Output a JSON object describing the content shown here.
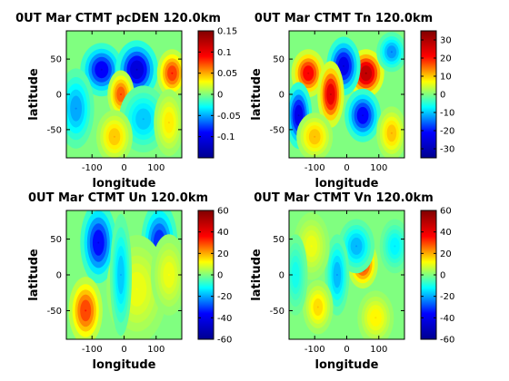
{
  "colormap": [
    "#00008f",
    "#0000ff",
    "#00ffff",
    "#ffff00",
    "#ff0000",
    "#800000"
  ],
  "chart_data": [
    {
      "type": "heatmap",
      "title": "0UT Mar CTMT pcDEN 120.0km",
      "xlabel": "longitude",
      "ylabel": "latitude",
      "xlim": [
        -180,
        180
      ],
      "ylim": [
        -90,
        90
      ],
      "xticks": [
        -100,
        0,
        100
      ],
      "yticks": [
        50,
        0,
        -50
      ],
      "clim": [
        -0.15,
        0.15
      ],
      "cticks": [
        "0.15",
        "0.1",
        "0.05",
        "0",
        "-0.05",
        "-0.1"
      ],
      "cticks_values": [
        0.15,
        0.1,
        0.05,
        0,
        -0.05,
        -0.1
      ],
      "features": [
        {
          "lon": -70,
          "lat": 35,
          "value": -0.11,
          "wlon": 35,
          "wlat": 20
        },
        {
          "lon": 40,
          "lat": 35,
          "value": -0.13,
          "wlon": 35,
          "wlat": 22
        },
        {
          "lon": 150,
          "lat": 30,
          "value": 0.09,
          "wlon": 25,
          "wlat": 18
        },
        {
          "lon": -10,
          "lat": 0,
          "value": 0.08,
          "wlon": 22,
          "wlat": 18
        },
        {
          "lon": -150,
          "lat": -20,
          "value": -0.06,
          "wlon": 30,
          "wlat": 30
        },
        {
          "lon": 60,
          "lat": -35,
          "value": -0.05,
          "wlon": 40,
          "wlat": 25
        },
        {
          "lon": -30,
          "lat": -60,
          "value": 0.05,
          "wlon": 30,
          "wlat": 20
        },
        {
          "lon": 140,
          "lat": -40,
          "value": 0.04,
          "wlon": 25,
          "wlat": 25
        }
      ]
    },
    {
      "type": "heatmap",
      "title": "0UT Mar CTMT Tn 120.0km",
      "xlabel": "longitude",
      "ylabel": "latitude",
      "xlim": [
        -180,
        180
      ],
      "ylim": [
        -90,
        90
      ],
      "xticks": [
        -100,
        0,
        100
      ],
      "yticks": [
        50,
        0,
        -50
      ],
      "clim": [
        -35,
        35
      ],
      "cticks": [
        "30",
        "20",
        "10",
        "0",
        "-10",
        "-20",
        "-30"
      ],
      "cticks_values": [
        30,
        20,
        10,
        0,
        -10,
        -20,
        -30
      ],
      "features": [
        {
          "lon": -120,
          "lat": 30,
          "value": 25,
          "wlon": 28,
          "wlat": 18
        },
        {
          "lon": 60,
          "lat": 30,
          "value": 33,
          "wlon": 30,
          "wlat": 18
        },
        {
          "lon": -10,
          "lat": 40,
          "value": -28,
          "wlon": 28,
          "wlat": 22
        },
        {
          "lon": -50,
          "lat": 0,
          "value": 28,
          "wlon": 22,
          "wlat": 25
        },
        {
          "lon": -150,
          "lat": -30,
          "value": -28,
          "wlon": 22,
          "wlat": 25
        },
        {
          "lon": 50,
          "lat": -30,
          "value": -25,
          "wlon": 30,
          "wlat": 20
        },
        {
          "lon": 140,
          "lat": 60,
          "value": -15,
          "wlon": 25,
          "wlat": 15
        },
        {
          "lon": -100,
          "lat": -60,
          "value": 12,
          "wlon": 30,
          "wlat": 18
        },
        {
          "lon": 140,
          "lat": -55,
          "value": 12,
          "wlon": 25,
          "wlat": 20
        }
      ]
    },
    {
      "type": "heatmap",
      "title": "0UT Mar CTMT Un 120.0km",
      "xlabel": "longitude",
      "ylabel": "latitude",
      "xlim": [
        -180,
        180
      ],
      "ylim": [
        -90,
        90
      ],
      "xticks": [
        -100,
        0,
        100
      ],
      "yticks": [
        50,
        0,
        -50
      ],
      "clim": [
        -60,
        60
      ],
      "cticks": [
        "60",
        "40",
        "20",
        "0",
        "-20",
        "-40",
        "-60"
      ],
      "cticks_values": [
        60,
        40,
        20,
        0,
        -20,
        -40,
        -60
      ],
      "features": [
        {
          "lon": -80,
          "lat": 45,
          "value": -42,
          "wlon": 30,
          "wlat": 30
        },
        {
          "lon": 110,
          "lat": 45,
          "value": -38,
          "wlon": 30,
          "wlat": 30
        },
        {
          "lon": -120,
          "lat": -50,
          "value": 35,
          "wlon": 28,
          "wlat": 25
        },
        {
          "lon": 40,
          "lat": -20,
          "value": 12,
          "wlon": 50,
          "wlat": 40
        },
        {
          "lon": -10,
          "lat": 0,
          "value": -20,
          "wlon": 18,
          "wlat": 45
        },
        {
          "lon": 140,
          "lat": 0,
          "value": 12,
          "wlon": 30,
          "wlat": 30
        }
      ]
    },
    {
      "type": "heatmap",
      "title": "0UT Mar CTMT Vn 120.0km",
      "xlabel": "longitude",
      "ylabel": "latitude",
      "xlim": [
        -180,
        180
      ],
      "ylim": [
        -90,
        90
      ],
      "xticks": [
        -100,
        0,
        100
      ],
      "yticks": [
        50,
        0,
        -50
      ],
      "clim": [
        -60,
        60
      ],
      "cticks": [
        "60",
        "40",
        "20",
        "0",
        "-20",
        "-40",
        "-60"
      ],
      "cticks_values": [
        60,
        40,
        20,
        0,
        -20,
        -40,
        -60
      ],
      "features": [
        {
          "lon": 50,
          "lat": 15,
          "value": 38,
          "wlon": 25,
          "wlat": 18
        },
        {
          "lon": 30,
          "lat": 40,
          "value": -22,
          "wlon": 30,
          "wlat": 20
        },
        {
          "lon": -30,
          "lat": 0,
          "value": -22,
          "wlon": 20,
          "wlat": 30
        },
        {
          "lon": -110,
          "lat": 40,
          "value": 12,
          "wlon": 30,
          "wlat": 25
        },
        {
          "lon": -90,
          "lat": -45,
          "value": 18,
          "wlon": 25,
          "wlat": 20
        },
        {
          "lon": 90,
          "lat": -60,
          "value": 15,
          "wlon": 30,
          "wlat": 20
        },
        {
          "lon": 150,
          "lat": 40,
          "value": -15,
          "wlon": 25,
          "wlat": 20
        },
        {
          "lon": -160,
          "lat": 0,
          "value": -12,
          "wlon": 20,
          "wlat": 30
        }
      ]
    }
  ]
}
